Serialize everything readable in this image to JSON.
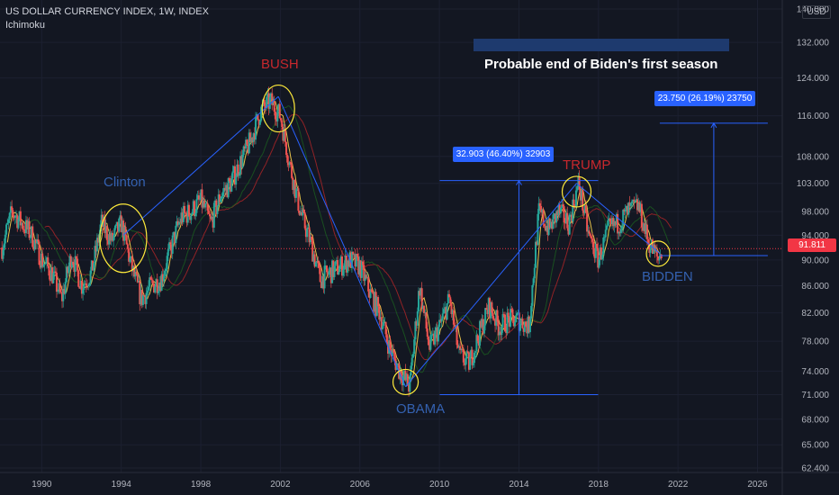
{
  "header": {
    "title": "US DOLLAR CURRENCY INDEX, 1W, INDEX",
    "indicator": "Ichimoku"
  },
  "currency": "USD",
  "last_price_label": "91.811",
  "banner_text": "Probable end of Biden's first season",
  "measure_labels": {
    "first": "32.903 (46.40%) 32903",
    "second": "23.750 (26.19%) 23750"
  },
  "annotations": {
    "clinton": "Clinton",
    "bush": "BUSH",
    "obama": "OBAMA",
    "trump": "TRUMP",
    "bidden": "BIDDEN"
  },
  "colors": {
    "background": "#131722",
    "up": "#26a69a",
    "down": "#ef5350",
    "conversion_line": "#ffd54f",
    "cloud_line": "#c62828",
    "trend_line": "#2962ff",
    "price_line": "#f23645",
    "red_text": "#c8282d",
    "blue_text": "#3461b0"
  },
  "chart_data": {
    "type": "line",
    "x_axis": {
      "ticks": [
        1990,
        1994,
        1998,
        2002,
        2006,
        2010,
        2014,
        2018,
        2022,
        2026
      ],
      "range": [
        1987.9,
        2027.2
      ]
    },
    "y_axis": {
      "scale": "log",
      "tick_labels": [
        "140.000",
        "132.000",
        "124.000",
        "116.000",
        "108.000",
        "103.000",
        "98.000",
        "94.000",
        "90.000",
        "86.000",
        "82.000",
        "78.000",
        "74.000",
        "71.000",
        "68.000",
        "65.000",
        "62.400"
      ],
      "tick_values": [
        140,
        132,
        124,
        116,
        108,
        103,
        98,
        94,
        90,
        86,
        82,
        78,
        74,
        71,
        68,
        65,
        62.4
      ]
    },
    "series": [
      {
        "name": "US DOLLAR CURRENCY INDEX",
        "x": [
          1988.0,
          1988.5,
          1989.0,
          1989.5,
          1990.0,
          1990.5,
          1991.0,
          1991.5,
          1992.0,
          1992.5,
          1993.0,
          1993.5,
          1994.0,
          1994.5,
          1995.0,
          1995.5,
          1996.0,
          1996.5,
          1997.0,
          1997.5,
          1998.0,
          1998.5,
          1999.0,
          1999.5,
          2000.0,
          2000.5,
          2001.0,
          2001.5,
          2002.0,
          2002.5,
          2003.0,
          2003.5,
          2004.0,
          2004.5,
          2005.0,
          2005.5,
          2006.0,
          2006.5,
          2007.0,
          2007.5,
          2008.0,
          2008.5,
          2009.0,
          2009.5,
          2010.0,
          2010.5,
          2011.0,
          2011.5,
          2012.0,
          2012.5,
          2013.0,
          2013.5,
          2014.0,
          2014.5,
          2015.0,
          2015.5,
          2016.0,
          2016.5,
          2017.0,
          2017.5,
          2018.0,
          2018.5,
          2019.0,
          2019.5,
          2020.0,
          2020.5,
          2021.0,
          2021.2
        ],
        "values": [
          92,
          98,
          96,
          94,
          90,
          88,
          84,
          91,
          86,
          88,
          96,
          93,
          96,
          89,
          84,
          86,
          87,
          92,
          97,
          98,
          100,
          96,
          101,
          103,
          107,
          111,
          117,
          119,
          116,
          106,
          98,
          93,
          87,
          88,
          89,
          90,
          89,
          85,
          82,
          77,
          74,
          72,
          86,
          77,
          80,
          84,
          76,
          75,
          79,
          83,
          80,
          81,
          81,
          80,
          98,
          95,
          98,
          96,
          103,
          94,
          90,
          95,
          96,
          98,
          99,
          93,
          90,
          91.8
        ]
      }
    ],
    "trend_segments": [
      {
        "from": [
          1994.1,
          94.0
        ],
        "to": [
          2001.9,
          120.0
        ]
      },
      {
        "from": [
          2001.9,
          120.0
        ],
        "to": [
          2008.3,
          72.0
        ]
      },
      {
        "from": [
          2008.3,
          72.0
        ],
        "to": [
          2016.9,
          103.0
        ]
      },
      {
        "from": [
          2016.9,
          103.0
        ],
        "to": [
          2021.1,
          91.0
        ]
      }
    ],
    "measures": [
      {
        "x": 2014.0,
        "from": 71.0,
        "to": 103.5
      },
      {
        "x": 2023.8,
        "from": 90.7,
        "to": 114.5
      }
    ],
    "last_price": 91.811
  }
}
